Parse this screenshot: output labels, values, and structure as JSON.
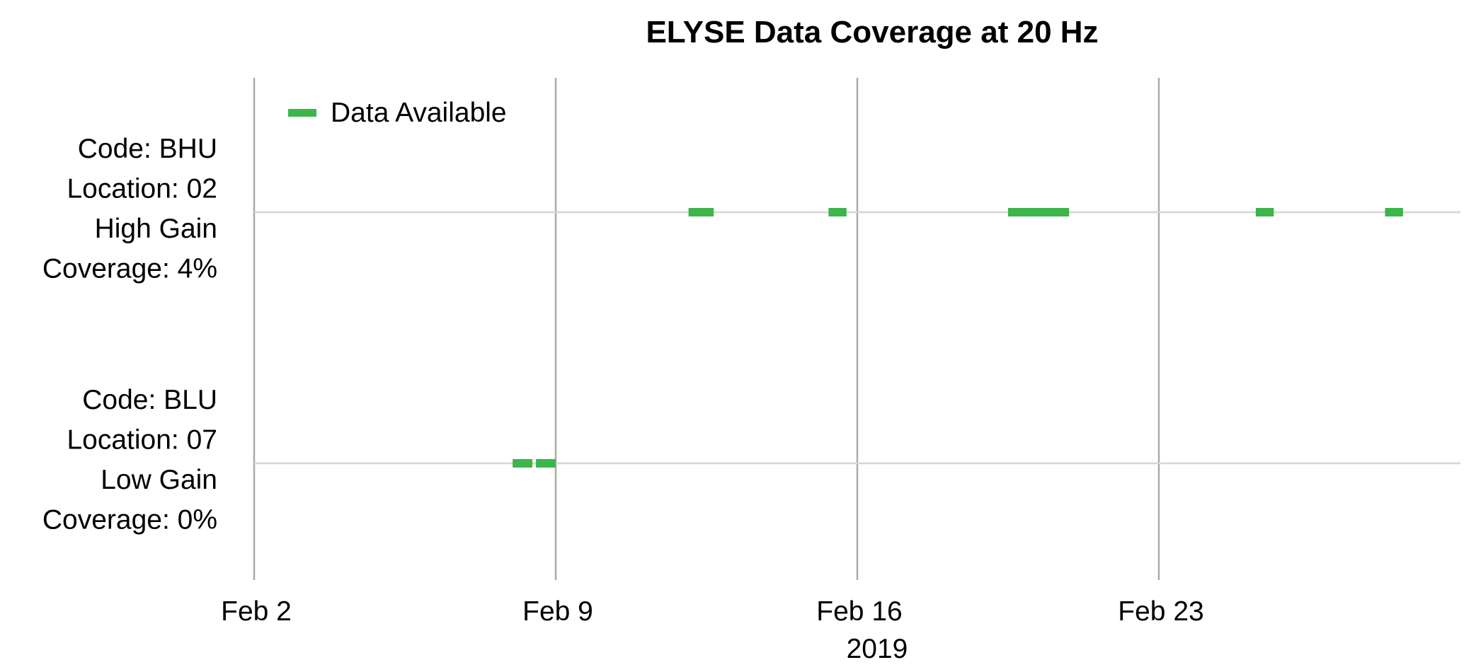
{
  "chart_data": {
    "type": "timeline",
    "title": "ELYSE Data Coverage at 20 Hz",
    "xlabel": "2019",
    "xlim": [
      "2019-02-02",
      "2019-03-02"
    ],
    "x_ticks": [
      {
        "date": "2019-02-02",
        "label": "Feb 2"
      },
      {
        "date": "2019-02-09",
        "label": "Feb 9"
      },
      {
        "date": "2019-02-16",
        "label": "Feb 16"
      },
      {
        "date": "2019-02-23",
        "label": "Feb 23"
      }
    ],
    "grid": true,
    "legend": {
      "placement": "top-left",
      "label": "Data Available",
      "color": "#3cb54a"
    },
    "rows": [
      {
        "labels": [
          "Code: BHU",
          "Location: 02",
          "High Gain",
          "Coverage: 4%"
        ],
        "intervals": [
          [
            "2019-02-12 02:00",
            "2019-02-12 16:00"
          ],
          [
            "2019-02-15 08:00",
            "2019-02-15 18:00"
          ],
          [
            "2019-02-19 12:00",
            "2019-02-20 22:00"
          ],
          [
            "2019-02-25 06:00",
            "2019-02-25 16:00"
          ],
          [
            "2019-02-28 06:00",
            "2019-02-28 16:00"
          ]
        ]
      },
      {
        "labels": [
          "Code: BLU",
          "Location: 07",
          "Low Gain",
          "Coverage: 0%"
        ],
        "intervals": [
          [
            "2019-02-08 00:00",
            "2019-02-08 11:00"
          ],
          [
            "2019-02-08 13:00",
            "2019-02-09 00:00"
          ]
        ]
      }
    ]
  }
}
